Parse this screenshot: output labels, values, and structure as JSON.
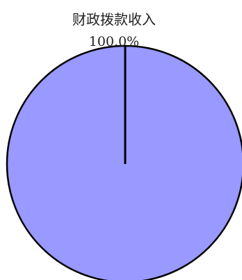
{
  "chart_data": {
    "type": "pie",
    "slices": [
      {
        "label": "财政拨款收入",
        "value": 100.0,
        "percent_label": "100.0%",
        "color": "#9999ff"
      }
    ]
  }
}
